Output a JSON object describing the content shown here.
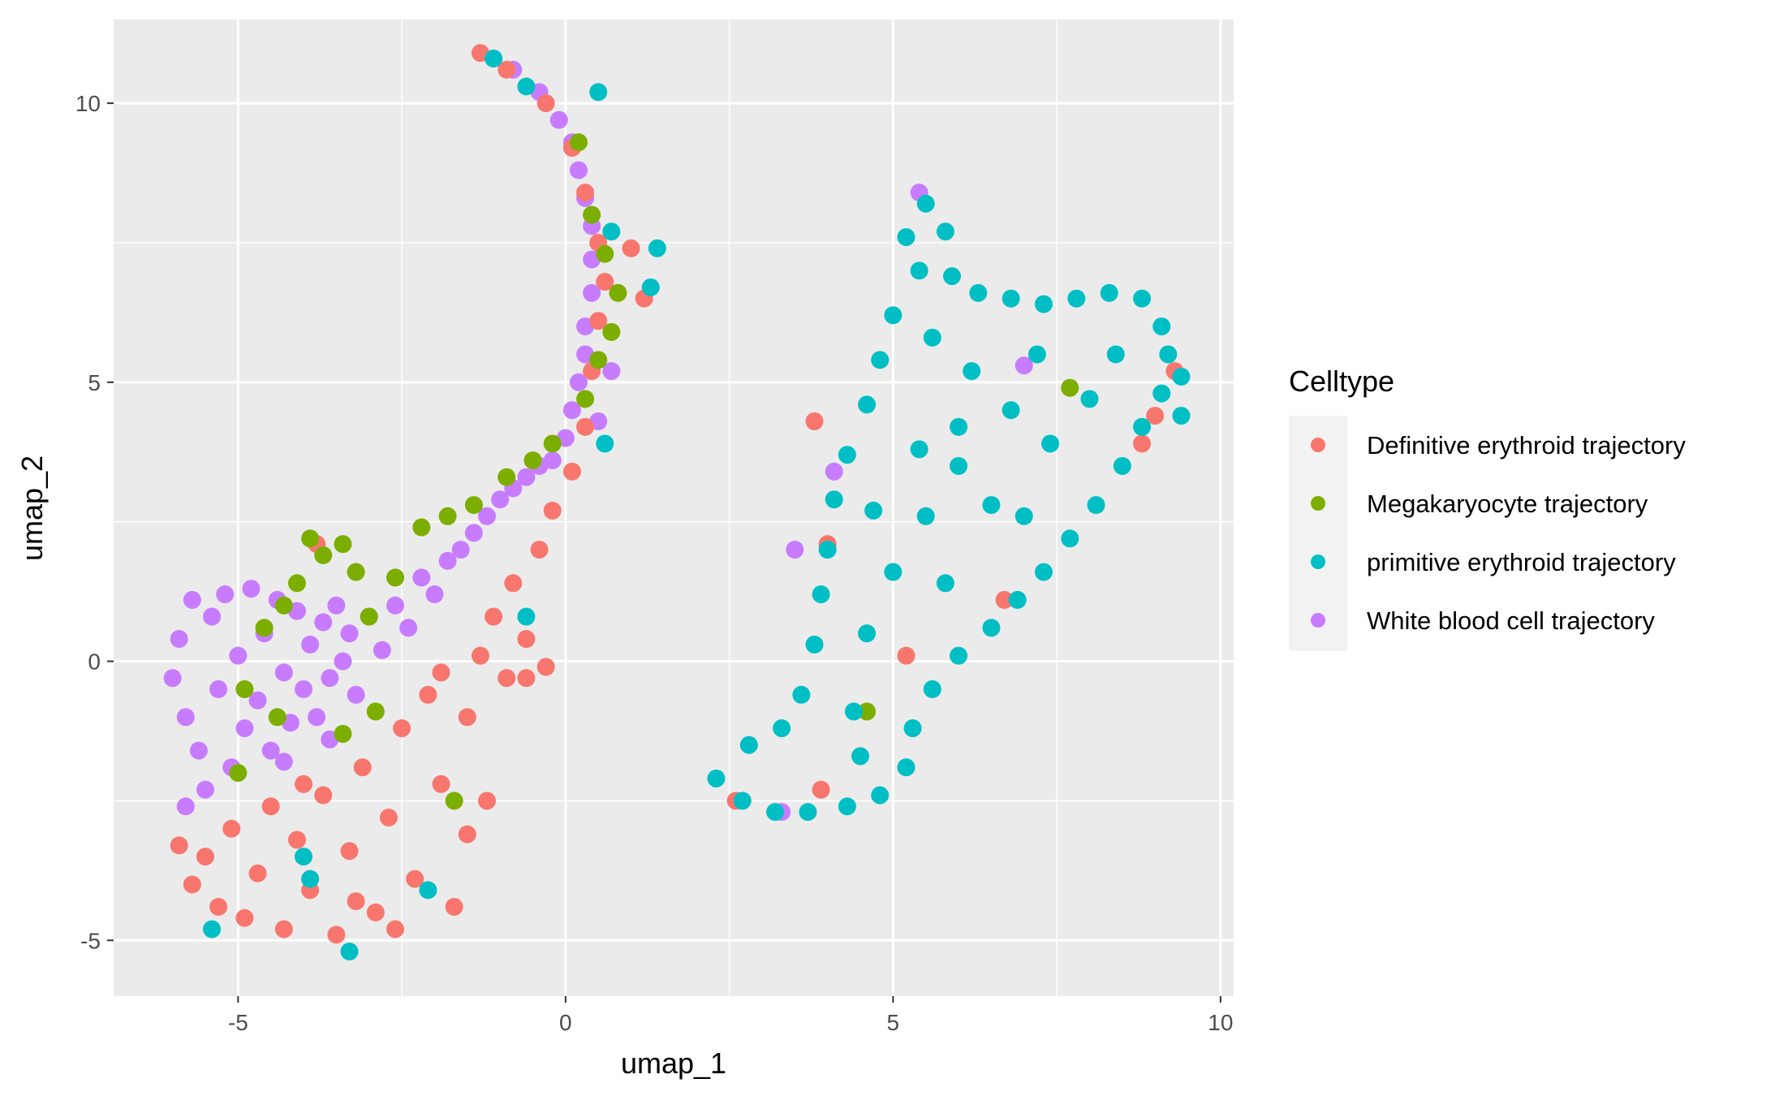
{
  "chart_data": {
    "type": "scatter",
    "title": "",
    "xlabel": "umap_1",
    "ylabel": "umap_2",
    "xlim": [
      -6.9,
      10.2
    ],
    "ylim": [
      -6.0,
      11.5
    ],
    "x_ticks": [
      -5,
      0,
      5,
      10
    ],
    "y_ticks": [
      -5,
      0,
      5,
      10
    ],
    "x_tick_labels": [
      "-5",
      "0",
      "5",
      "10"
    ],
    "y_tick_labels": [
      "-5",
      "0",
      "5",
      "10"
    ],
    "grid": true,
    "legend": {
      "title": "Celltype",
      "placement": "right",
      "entries": [
        {
          "label": "Definitive erythroid trajectory",
          "color": "#F8766D"
        },
        {
          "label": "Megakaryocyte trajectory",
          "color": "#7CAE00"
        },
        {
          "label": "primitive erythroid trajectory",
          "color": "#00BFC4"
        },
        {
          "label": "White blood cell trajectory",
          "color": "#C77CFF"
        }
      ]
    },
    "series": [
      {
        "name": "White blood cell trajectory",
        "color": "#C77CFF",
        "points": [
          [
            -6.0,
            -0.3
          ],
          [
            -5.9,
            0.4
          ],
          [
            -5.8,
            -1.0
          ],
          [
            -5.7,
            1.1
          ],
          [
            -5.6,
            -1.6
          ],
          [
            -5.5,
            -2.3
          ],
          [
            -5.4,
            0.8
          ],
          [
            -5.3,
            -0.5
          ],
          [
            -5.2,
            1.2
          ],
          [
            -5.1,
            -1.9
          ],
          [
            -5.0,
            0.1
          ],
          [
            -4.9,
            -1.2
          ],
          [
            -4.8,
            1.3
          ],
          [
            -4.7,
            -0.7
          ],
          [
            -4.6,
            0.5
          ],
          [
            -4.5,
            -1.6
          ],
          [
            -4.4,
            1.1
          ],
          [
            -4.3,
            -0.2
          ],
          [
            -4.2,
            -1.1
          ],
          [
            -4.1,
            0.9
          ],
          [
            -4.0,
            -0.5
          ],
          [
            -3.9,
            0.3
          ],
          [
            -3.8,
            -1.0
          ],
          [
            -3.7,
            0.7
          ],
          [
            -3.6,
            -0.3
          ],
          [
            -3.5,
            1.0
          ],
          [
            -3.4,
            0.0
          ],
          [
            -3.3,
            0.5
          ],
          [
            -3.2,
            -0.6
          ],
          [
            -3.0,
            0.8
          ],
          [
            -2.8,
            0.2
          ],
          [
            -2.6,
            1.0
          ],
          [
            -2.4,
            0.6
          ],
          [
            -2.2,
            1.5
          ],
          [
            -2.0,
            1.2
          ],
          [
            -1.8,
            1.8
          ],
          [
            -1.6,
            2.0
          ],
          [
            -1.4,
            2.3
          ],
          [
            -1.2,
            2.6
          ],
          [
            -1.0,
            2.9
          ],
          [
            -0.8,
            3.1
          ],
          [
            -0.6,
            3.3
          ],
          [
            -0.4,
            3.5
          ],
          [
            -0.2,
            3.6
          ],
          [
            0.0,
            4.0
          ],
          [
            0.1,
            4.5
          ],
          [
            0.2,
            5.0
          ],
          [
            0.3,
            5.5
          ],
          [
            0.3,
            6.0
          ],
          [
            0.4,
            6.6
          ],
          [
            0.4,
            7.2
          ],
          [
            0.4,
            7.8
          ],
          [
            0.3,
            8.3
          ],
          [
            0.2,
            8.8
          ],
          [
            0.1,
            9.3
          ],
          [
            -0.1,
            9.7
          ],
          [
            -0.4,
            10.2
          ],
          [
            -0.8,
            10.6
          ],
          [
            -1.1,
            10.8
          ],
          [
            -5.8,
            -2.6
          ],
          [
            -4.3,
            -1.8
          ],
          [
            -3.6,
            -1.4
          ],
          [
            0.5,
            4.3
          ],
          [
            0.7,
            5.2
          ],
          [
            5.4,
            8.4
          ],
          [
            7.0,
            5.3
          ],
          [
            4.1,
            3.4
          ],
          [
            3.5,
            2.0
          ],
          [
            3.3,
            -2.7
          ]
        ]
      },
      {
        "name": "Definitive erythroid trajectory",
        "color": "#F8766D",
        "points": [
          [
            -5.9,
            -3.3
          ],
          [
            -5.7,
            -4.0
          ],
          [
            -5.5,
            -3.5
          ],
          [
            -5.3,
            -4.4
          ],
          [
            -5.1,
            -3.0
          ],
          [
            -4.9,
            -4.6
          ],
          [
            -4.7,
            -3.8
          ],
          [
            -4.5,
            -2.6
          ],
          [
            -4.3,
            -4.8
          ],
          [
            -4.1,
            -3.2
          ],
          [
            -3.9,
            -4.1
          ],
          [
            -3.7,
            -2.4
          ],
          [
            -3.5,
            -4.9
          ],
          [
            -3.3,
            -3.4
          ],
          [
            -3.1,
            -1.9
          ],
          [
            -2.9,
            -4.5
          ],
          [
            -2.7,
            -2.8
          ],
          [
            -2.5,
            -1.2
          ],
          [
            -2.3,
            -3.9
          ],
          [
            -2.1,
            -0.6
          ],
          [
            -1.9,
            -2.2
          ],
          [
            -1.7,
            -4.4
          ],
          [
            -1.5,
            -3.1
          ],
          [
            -1.5,
            -1.0
          ],
          [
            -1.3,
            0.1
          ],
          [
            -1.2,
            -2.5
          ],
          [
            -1.1,
            0.8
          ],
          [
            -0.9,
            -0.3
          ],
          [
            -0.8,
            1.4
          ],
          [
            -0.6,
            0.4
          ],
          [
            -0.4,
            2.0
          ],
          [
            -0.3,
            -0.1
          ],
          [
            -0.2,
            2.7
          ],
          [
            0.1,
            3.4
          ],
          [
            0.3,
            4.2
          ],
          [
            0.4,
            5.2
          ],
          [
            0.5,
            6.1
          ],
          [
            0.6,
            6.8
          ],
          [
            0.5,
            7.5
          ],
          [
            0.3,
            8.4
          ],
          [
            0.1,
            9.2
          ],
          [
            -0.3,
            10.0
          ],
          [
            -0.9,
            10.6
          ],
          [
            -1.3,
            10.9
          ],
          [
            1.2,
            6.5
          ],
          [
            1.0,
            7.4
          ],
          [
            -3.2,
            -4.3
          ],
          [
            -2.6,
            -4.8
          ],
          [
            -4.0,
            -2.2
          ],
          [
            -1.9,
            -0.2
          ],
          [
            -0.6,
            -0.3
          ],
          [
            6.7,
            1.1
          ],
          [
            5.2,
            0.1
          ],
          [
            3.9,
            -2.3
          ],
          [
            2.6,
            -2.5
          ],
          [
            9.3,
            5.2
          ],
          [
            9.0,
            4.4
          ],
          [
            8.8,
            3.9
          ],
          [
            3.8,
            4.3
          ],
          [
            4.0,
            2.1
          ],
          [
            -3.8,
            2.1
          ]
        ]
      },
      {
        "name": "Megakaryocyte trajectory",
        "color": "#7CAE00",
        "points": [
          [
            -3.9,
            2.2
          ],
          [
            -3.7,
            1.9
          ],
          [
            -3.4,
            2.1
          ],
          [
            -3.2,
            1.6
          ],
          [
            -4.1,
            1.4
          ],
          [
            -4.3,
            1.0
          ],
          [
            -4.6,
            0.6
          ],
          [
            -3.0,
            0.8
          ],
          [
            -2.6,
            1.5
          ],
          [
            -2.2,
            2.4
          ],
          [
            -1.8,
            2.6
          ],
          [
            -1.4,
            2.8
          ],
          [
            -0.9,
            3.3
          ],
          [
            -0.5,
            3.6
          ],
          [
            -0.2,
            3.9
          ],
          [
            0.3,
            4.7
          ],
          [
            0.5,
            5.4
          ],
          [
            0.7,
            5.9
          ],
          [
            0.8,
            6.6
          ],
          [
            0.6,
            7.3
          ],
          [
            0.4,
            8.0
          ],
          [
            0.2,
            9.3
          ],
          [
            -4.9,
            -0.5
          ],
          [
            -4.4,
            -1.0
          ],
          [
            -5.0,
            -2.0
          ],
          [
            -3.4,
            -1.3
          ],
          [
            -2.9,
            -0.9
          ],
          [
            -1.7,
            -2.5
          ],
          [
            7.7,
            4.9
          ],
          [
            4.6,
            -0.9
          ]
        ]
      },
      {
        "name": "primitive erythroid trajectory",
        "color": "#00BFC4",
        "points": [
          [
            5.2,
            7.6
          ],
          [
            5.5,
            8.2
          ],
          [
            5.8,
            7.7
          ],
          [
            5.4,
            7.0
          ],
          [
            5.9,
            6.9
          ],
          [
            6.3,
            6.6
          ],
          [
            6.8,
            6.5
          ],
          [
            7.3,
            6.4
          ],
          [
            7.8,
            6.5
          ],
          [
            8.3,
            6.6
          ],
          [
            8.8,
            6.5
          ],
          [
            9.1,
            6.0
          ],
          [
            9.2,
            5.5
          ],
          [
            9.1,
            4.8
          ],
          [
            8.8,
            4.2
          ],
          [
            8.5,
            3.5
          ],
          [
            8.1,
            2.8
          ],
          [
            7.7,
            2.2
          ],
          [
            7.3,
            1.6
          ],
          [
            6.9,
            1.1
          ],
          [
            6.5,
            0.6
          ],
          [
            6.0,
            0.1
          ],
          [
            5.6,
            -0.5
          ],
          [
            5.3,
            -1.2
          ],
          [
            5.2,
            -1.9
          ],
          [
            4.8,
            -2.4
          ],
          [
            4.3,
            -2.6
          ],
          [
            3.7,
            -2.7
          ],
          [
            3.2,
            -2.7
          ],
          [
            2.7,
            -2.5
          ],
          [
            2.3,
            -2.1
          ],
          [
            2.8,
            -1.5
          ],
          [
            3.3,
            -1.2
          ],
          [
            3.6,
            -0.6
          ],
          [
            3.8,
            0.3
          ],
          [
            3.9,
            1.2
          ],
          [
            4.0,
            2.0
          ],
          [
            4.1,
            2.9
          ],
          [
            4.3,
            3.7
          ],
          [
            4.6,
            4.6
          ],
          [
            4.8,
            5.4
          ],
          [
            5.0,
            6.2
          ],
          [
            5.6,
            5.8
          ],
          [
            6.2,
            5.2
          ],
          [
            6.8,
            4.5
          ],
          [
            7.4,
            3.9
          ],
          [
            8.0,
            4.7
          ],
          [
            6.0,
            3.5
          ],
          [
            5.5,
            2.6
          ],
          [
            5.0,
            1.6
          ],
          [
            4.6,
            0.5
          ],
          [
            4.4,
            -0.9
          ],
          [
            6.5,
            2.8
          ],
          [
            7.2,
            5.5
          ],
          [
            8.4,
            5.5
          ],
          [
            6.0,
            4.2
          ],
          [
            5.4,
            3.8
          ],
          [
            4.7,
            2.7
          ],
          [
            4.5,
            -1.7
          ],
          [
            5.8,
            1.4
          ],
          [
            7.0,
            2.6
          ],
          [
            1.4,
            7.4
          ],
          [
            1.3,
            6.7
          ],
          [
            0.7,
            7.7
          ],
          [
            0.5,
            10.2
          ],
          [
            -0.6,
            10.3
          ],
          [
            -1.1,
            10.8
          ],
          [
            0.6,
            3.9
          ],
          [
            -3.9,
            -3.9
          ],
          [
            -3.3,
            -5.2
          ],
          [
            -4.0,
            -3.5
          ],
          [
            -2.1,
            -4.1
          ],
          [
            -5.4,
            -4.8
          ],
          [
            -0.6,
            0.8
          ],
          [
            9.4,
            4.4
          ],
          [
            9.4,
            5.1
          ]
        ]
      }
    ]
  }
}
